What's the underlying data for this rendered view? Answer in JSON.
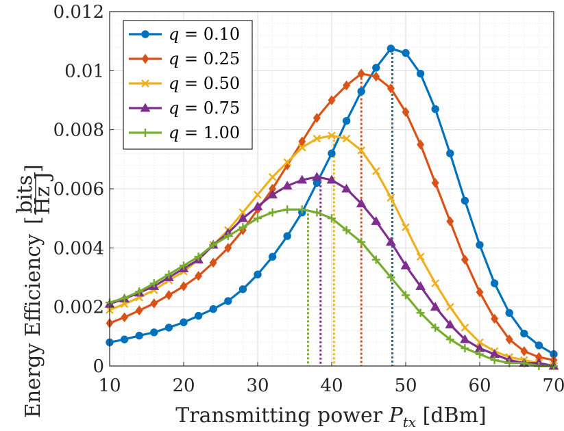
{
  "chart_data": {
    "type": "line",
    "title": "",
    "xlabel_main": "Transmitting power ",
    "xlabel_var": "P",
    "xlabel_sub": "tx",
    "xlabel_unit": " [dBm]",
    "ylabel_main": "Energy Efficiency",
    "ylabel_unit_num": "bits",
    "ylabel_unit_den": "Hz J",
    "xlim": [
      10,
      70
    ],
    "ylim": [
      0,
      0.012
    ],
    "x_ticks": [
      10,
      20,
      30,
      40,
      50,
      60,
      70
    ],
    "x_tick_labels": [
      "10",
      "20",
      "30",
      "40",
      "50",
      "60",
      "70"
    ],
    "y_ticks": [
      0,
      0.002,
      0.004,
      0.006,
      0.008,
      0.01,
      0.012
    ],
    "y_tick_labels": [
      "0",
      "0.002",
      "0.004",
      "0.006",
      "0.008",
      "0.01",
      "0.012"
    ],
    "grid": true,
    "legend_position": "top-left",
    "x": [
      10,
      12,
      14,
      16,
      18,
      20,
      22,
      24,
      26,
      28,
      30,
      32,
      34,
      36,
      38,
      40,
      42,
      44,
      46,
      48,
      50,
      52,
      54,
      56,
      58,
      60,
      62,
      64,
      66,
      68,
      70
    ],
    "series": [
      {
        "name": "q = 0.10",
        "q_label": "q",
        "value_label": "= 0.10",
        "color": "#0072BD",
        "marker": "circle",
        "peak_x": 48.2,
        "values": [
          0.0008,
          0.0009,
          0.00103,
          0.00114,
          0.0013,
          0.00148,
          0.0017,
          0.00193,
          0.0022,
          0.0026,
          0.0031,
          0.0037,
          0.0044,
          0.0052,
          0.0062,
          0.0072,
          0.0083,
          0.0093,
          0.0101,
          0.01075,
          0.0106,
          0.0099,
          0.0087,
          0.0072,
          0.0056,
          0.0041,
          0.0028,
          0.0018,
          0.0011,
          0.0007,
          0.0004
        ]
      },
      {
        "name": "q = 0.25",
        "q_label": "q",
        "value_label": "= 0.25",
        "color": "#D95319",
        "marker": "diamond",
        "peak_x": 44.0,
        "values": [
          0.00145,
          0.00165,
          0.00188,
          0.00212,
          0.0024,
          0.0027,
          0.00305,
          0.0035,
          0.004,
          0.0046,
          0.0053,
          0.006,
          0.0068,
          0.0076,
          0.0084,
          0.009,
          0.0095,
          0.0099,
          0.0098,
          0.0094,
          0.0086,
          0.0075,
          0.0062,
          0.0049,
          0.0036,
          0.0025,
          0.0016,
          0.0009,
          0.0005,
          0.0003,
          0.0002
        ]
      },
      {
        "name": "q = 0.50",
        "q_label": "q",
        "value_label": "= 0.50",
        "color": "#EDB120",
        "marker": "x",
        "peak_x": 40.3,
        "values": [
          0.0019,
          0.0021,
          0.00232,
          0.00257,
          0.0029,
          0.0032,
          0.0036,
          0.0041,
          0.0046,
          0.0052,
          0.0058,
          0.0064,
          0.0069,
          0.0074,
          0.0077,
          0.0078,
          0.0077,
          0.0073,
          0.0066,
          0.0057,
          0.0047,
          0.0037,
          0.0028,
          0.002,
          0.0013,
          0.0008,
          0.0005,
          0.0003,
          0.0002,
          0.0001,
          0.0
        ]
      },
      {
        "name": "q = 0.75",
        "q_label": "q",
        "value_label": "= 0.75",
        "color": "#7E2F8E",
        "marker": "triangle",
        "peak_x": 38.5,
        "values": [
          0.0021,
          0.00228,
          0.00248,
          0.0027,
          0.003,
          0.0033,
          0.0036,
          0.0041,
          0.0045,
          0.005,
          0.0054,
          0.0058,
          0.0061,
          0.0063,
          0.0064,
          0.0063,
          0.006,
          0.0055,
          0.0049,
          0.0042,
          0.0034,
          0.0027,
          0.002,
          0.0014,
          0.0009,
          0.0006,
          0.0004,
          0.0002,
          0.0001,
          0.0001,
          0.0
        ]
      },
      {
        "name": "q = 1.00",
        "q_label": "q",
        "value_label": "= 1.00",
        "color": "#77AC30",
        "marker": "plus",
        "peak_x": 36.8,
        "values": [
          0.00215,
          0.0023,
          0.00252,
          0.0028,
          0.0031,
          0.0034,
          0.0037,
          0.0041,
          0.0044,
          0.0047,
          0.005,
          0.0052,
          0.0053,
          0.0053,
          0.0052,
          0.005,
          0.0046,
          0.0042,
          0.0036,
          0.003,
          0.0024,
          0.0018,
          0.0013,
          0.0009,
          0.0006,
          0.0004,
          0.0002,
          0.0001,
          0.0001,
          0.0,
          0.0
        ]
      }
    ]
  }
}
